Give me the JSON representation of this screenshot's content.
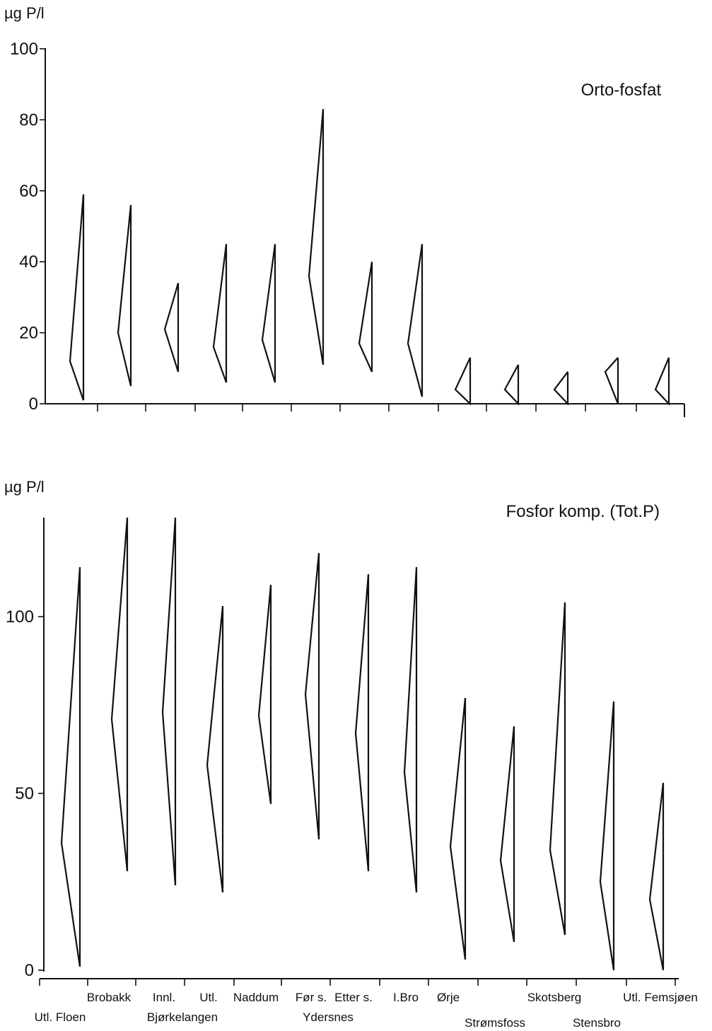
{
  "chart_data": [
    {
      "type": "range-triangle",
      "title": "Orto-fosfat",
      "ylabel": "µg P/l",
      "ylim": [
        0,
        100
      ],
      "yticks": [
        0,
        20,
        40,
        60,
        80,
        100
      ],
      "categories": [
        "Utl. Floen",
        "Brobakk",
        "Innl. Bjørkelangen",
        "Utl. Bjørkelangen",
        "Naddum",
        "Før s. Ydersnes",
        "Etter s. Ydersnes",
        "I.Bro",
        "Ørje",
        "Strømsfoss",
        "Skotsberg",
        "Stensbro",
        "Utl. Femsjøen"
      ],
      "series": [
        {
          "name": "max",
          "values": [
            59,
            56,
            34,
            45,
            45,
            83,
            40,
            45,
            13,
            11,
            9,
            13,
            13
          ]
        },
        {
          "name": "mean",
          "values": [
            12,
            20,
            21,
            16,
            18,
            36,
            17,
            17,
            4,
            4,
            4,
            9,
            4
          ]
        },
        {
          "name": "min",
          "values": [
            1,
            5,
            9,
            6,
            6,
            11,
            9,
            2,
            0,
            0,
            0,
            0,
            0
          ]
        }
      ]
    },
    {
      "type": "range-triangle",
      "title": "Fosfor komp. (Tot.P)",
      "ylabel": "µg P/l",
      "ylim": [
        0,
        128
      ],
      "yticks": [
        0,
        50,
        100
      ],
      "categories": [
        "Utl. Floen",
        "Brobakk",
        "Innl. Bjørkelangen",
        "Utl. Bjørkelangen",
        "Naddum",
        "Før s. Ydersnes",
        "Etter s. Ydersnes",
        "I.Bro",
        "Ørje",
        "Strømsfoss",
        "Skotsberg",
        "Stensbro",
        "Utl. Femsjøen"
      ],
      "series": [
        {
          "name": "max",
          "values": [
            114,
            128,
            128,
            103,
            109,
            118,
            112,
            114,
            77,
            69,
            104,
            76,
            53
          ]
        },
        {
          "name": "mean",
          "values": [
            36,
            71,
            73,
            58,
            72,
            78,
            67,
            56,
            35,
            31,
            34,
            25,
            20
          ]
        },
        {
          "name": "min",
          "values": [
            1,
            28,
            24,
            22,
            47,
            37,
            28,
            22,
            3,
            8,
            10,
            0,
            0
          ]
        }
      ]
    }
  ],
  "x_labels": [
    {
      "text": "Utl. Floen",
      "row": 2
    },
    {
      "text": "Brobakk",
      "row": 1
    },
    {
      "text": "Innl.",
      "row": 1
    },
    {
      "text": "Bjørkelangen",
      "row": 2
    },
    {
      "text": "Utl.",
      "row": 1
    },
    {
      "text": "Naddum",
      "row": 1
    },
    {
      "text": "Før s.",
      "row": 1
    },
    {
      "text": "Etter s.",
      "row": 1
    },
    {
      "text": "Ydersnes",
      "row": 2
    },
    {
      "text": "I.Bro",
      "row": 1
    },
    {
      "text": "Ørje",
      "row": 1
    },
    {
      "text": "Strømsfoss",
      "row": 3
    },
    {
      "text": "Skotsberg",
      "row": 1
    },
    {
      "text": "Stensbro",
      "row": 3
    },
    {
      "text": "Utl. Femsjøen",
      "row": 1
    }
  ]
}
